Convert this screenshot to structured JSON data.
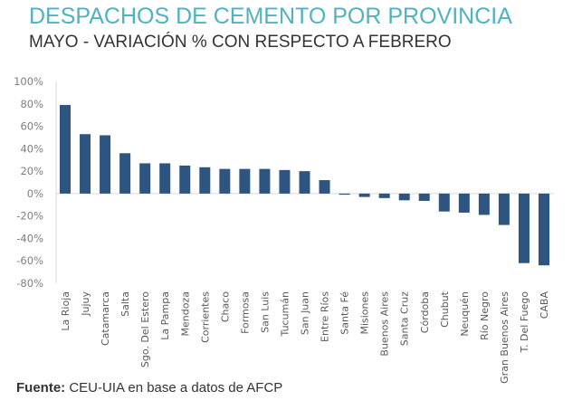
{
  "header": {
    "title": "DESPACHOS DE CEMENTO POR PROVINCIA",
    "subtitle": "MAYO - VARIACIÓN % CON RESPECTO A FEBRERO"
  },
  "footer": {
    "source_label": "Fuente:",
    "source_text": "CEU-UIA en base a datos de AFCP"
  },
  "chart_data": {
    "type": "bar",
    "title": "DESPACHOS DE CEMENTO POR PROVINCIA",
    "subtitle": "MAYO - VARIACIÓN % CON RESPECTO A FEBRERO",
    "xlabel": "",
    "ylabel": "",
    "ylim": [
      -80,
      100
    ],
    "yticks": [
      100,
      80,
      60,
      40,
      20,
      0,
      -20,
      -40,
      -60,
      -80
    ],
    "ytick_labels": [
      "100%",
      "80%",
      "60%",
      "40%",
      "20%",
      "0%",
      "-20%",
      "-40%",
      "-60%",
      "-80%"
    ],
    "grid": false,
    "bar_color": "#2e5580",
    "categories": [
      "La Rioja",
      "Jujuy",
      "Catamarca",
      "Salta",
      "Sgo. Del Estero",
      "La Pampa",
      "Mendoza",
      "Corrientes",
      "Chaco",
      "Formosa",
      "San Luis",
      "Tucumán",
      "San Juan",
      "Entre Ríos",
      "Santa Fé",
      "Misiones",
      "Buenos Aires",
      "Santa Cruz",
      "Córdoba",
      "Chubut",
      "Neuquén",
      "Río Negro",
      "Gran Buenos Aires",
      "T. Del Fuego",
      "CABA"
    ],
    "values": [
      79,
      53,
      52,
      36,
      27,
      27,
      25,
      23.5,
      22,
      22,
      22,
      21,
      20,
      12,
      -1,
      -3,
      -4,
      -6,
      -6.5,
      -16,
      -17,
      -19,
      -28,
      -62,
      -64
    ]
  }
}
